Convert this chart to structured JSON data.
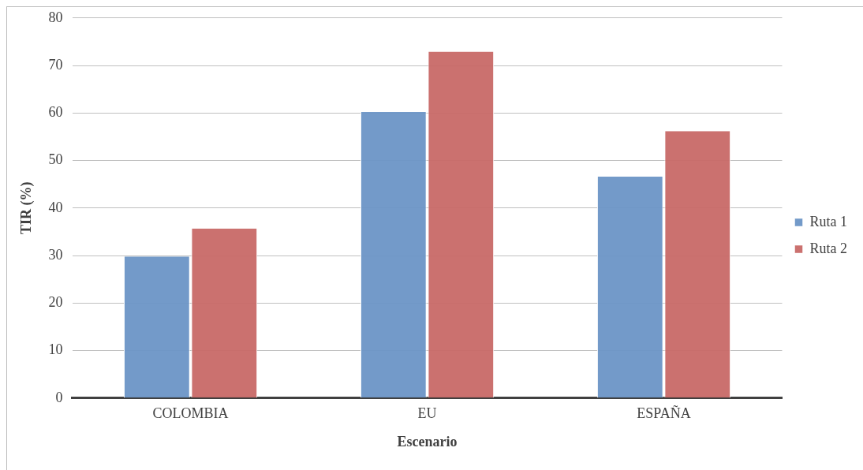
{
  "chart_data": {
    "type": "bar",
    "xlabel": "Escenario",
    "ylabel": "TIR (%)",
    "categories": [
      "COLOMBIA",
      "EU",
      "ESPAÑA"
    ],
    "series": [
      {
        "name": "Ruta 1",
        "color": "#6a94c6",
        "values": [
          29.8,
          60.2,
          46.6
        ]
      },
      {
        "name": "Ruta 2",
        "color": "#c86866",
        "values": [
          35.7,
          72.9,
          56.2
        ]
      }
    ],
    "ylim": [
      0,
      80
    ],
    "yticks": [
      0,
      10,
      20,
      30,
      40,
      50,
      60,
      70,
      80
    ],
    "grid": "y",
    "legend": "right"
  }
}
